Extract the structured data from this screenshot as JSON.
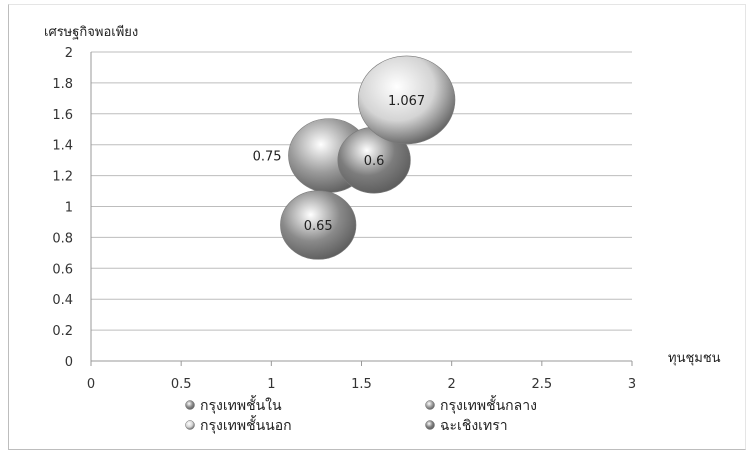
{
  "chart_data": {
    "type": "bubble",
    "xlabel": "ทุนชุมชน",
    "ylabel": "เศรษฐกิจพอเพียง",
    "xlim": [
      0,
      3
    ],
    "ylim": [
      0,
      2
    ],
    "x_ticks": [
      "0",
      "0.5",
      "1",
      "1.5",
      "2",
      "2.5",
      "3"
    ],
    "y_ticks": [
      "0",
      "0.2",
      "0.4",
      "0.6",
      "0.8",
      "1",
      "1.2",
      "1.4",
      "1.6",
      "1.8",
      "2"
    ],
    "grid": "horizontal",
    "legend_position": "bottom",
    "series": [
      {
        "name": "กรุงเทพชั้นใน",
        "x": 1.26,
        "y": 0.88,
        "size": 0.65,
        "label": "0.65",
        "color": "#8a8a8a"
      },
      {
        "name": "กรุงเทพชั้นกลาง",
        "x": 1.32,
        "y": 1.33,
        "size": 0.75,
        "label": "0.75",
        "color": "#9a9a9a"
      },
      {
        "name": "กรุงเทพชั้นนอก",
        "x": 1.75,
        "y": 1.69,
        "size": 1.067,
        "label": "1.067",
        "color": "#d4d4d4"
      },
      {
        "name": "ฉะเชิงเทรา",
        "x": 1.57,
        "y": 1.3,
        "size": 0.6,
        "label": "0.6",
        "color": "#7d7d7d"
      }
    ]
  }
}
